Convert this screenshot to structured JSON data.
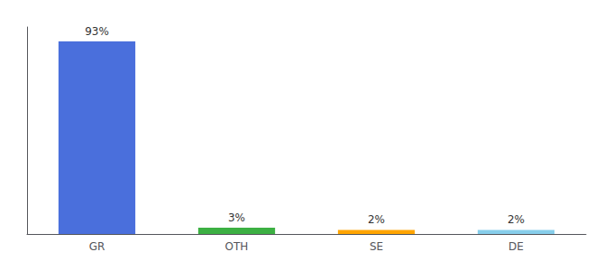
{
  "chart_data": {
    "type": "bar",
    "categories": [
      "GR",
      "OTH",
      "SE",
      "DE"
    ],
    "values": [
      93,
      3,
      2,
      2
    ],
    "value_labels": [
      "93%",
      "3%",
      "2%",
      "2%"
    ],
    "colors": [
      "#4a6fdc",
      "#3cb043",
      "#ffa500",
      "#87ceeb"
    ],
    "ylim": [
      0,
      100
    ],
    "data_labels": true,
    "grid": false,
    "tick_labels": "x"
  }
}
